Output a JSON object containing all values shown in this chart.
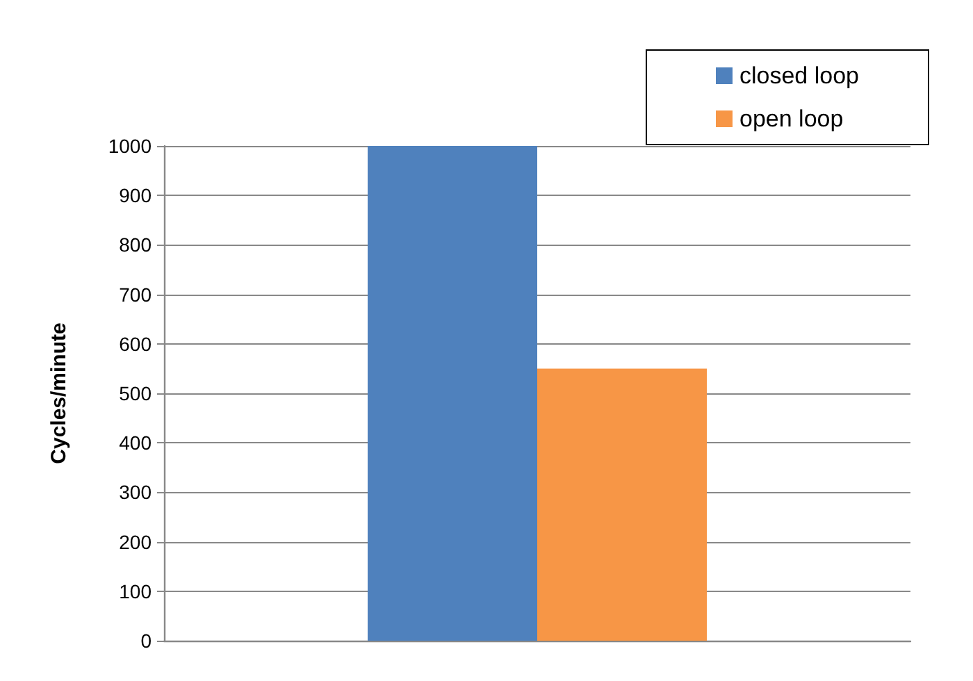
{
  "chart_data": {
    "type": "bar",
    "ylabel": "Cycles/minute",
    "categories": [
      null
    ],
    "series": [
      {
        "name": "closed loop",
        "color": "#4f81bd",
        "values": [
          1000
        ]
      },
      {
        "name": "open loop",
        "color": "#f79646",
        "values": [
          550
        ]
      }
    ],
    "ylim": [
      0,
      1000
    ],
    "yticks": [
      0,
      100,
      200,
      300,
      400,
      500,
      600,
      700,
      800,
      900,
      1000
    ],
    "grid": "y",
    "legend": "top right"
  }
}
